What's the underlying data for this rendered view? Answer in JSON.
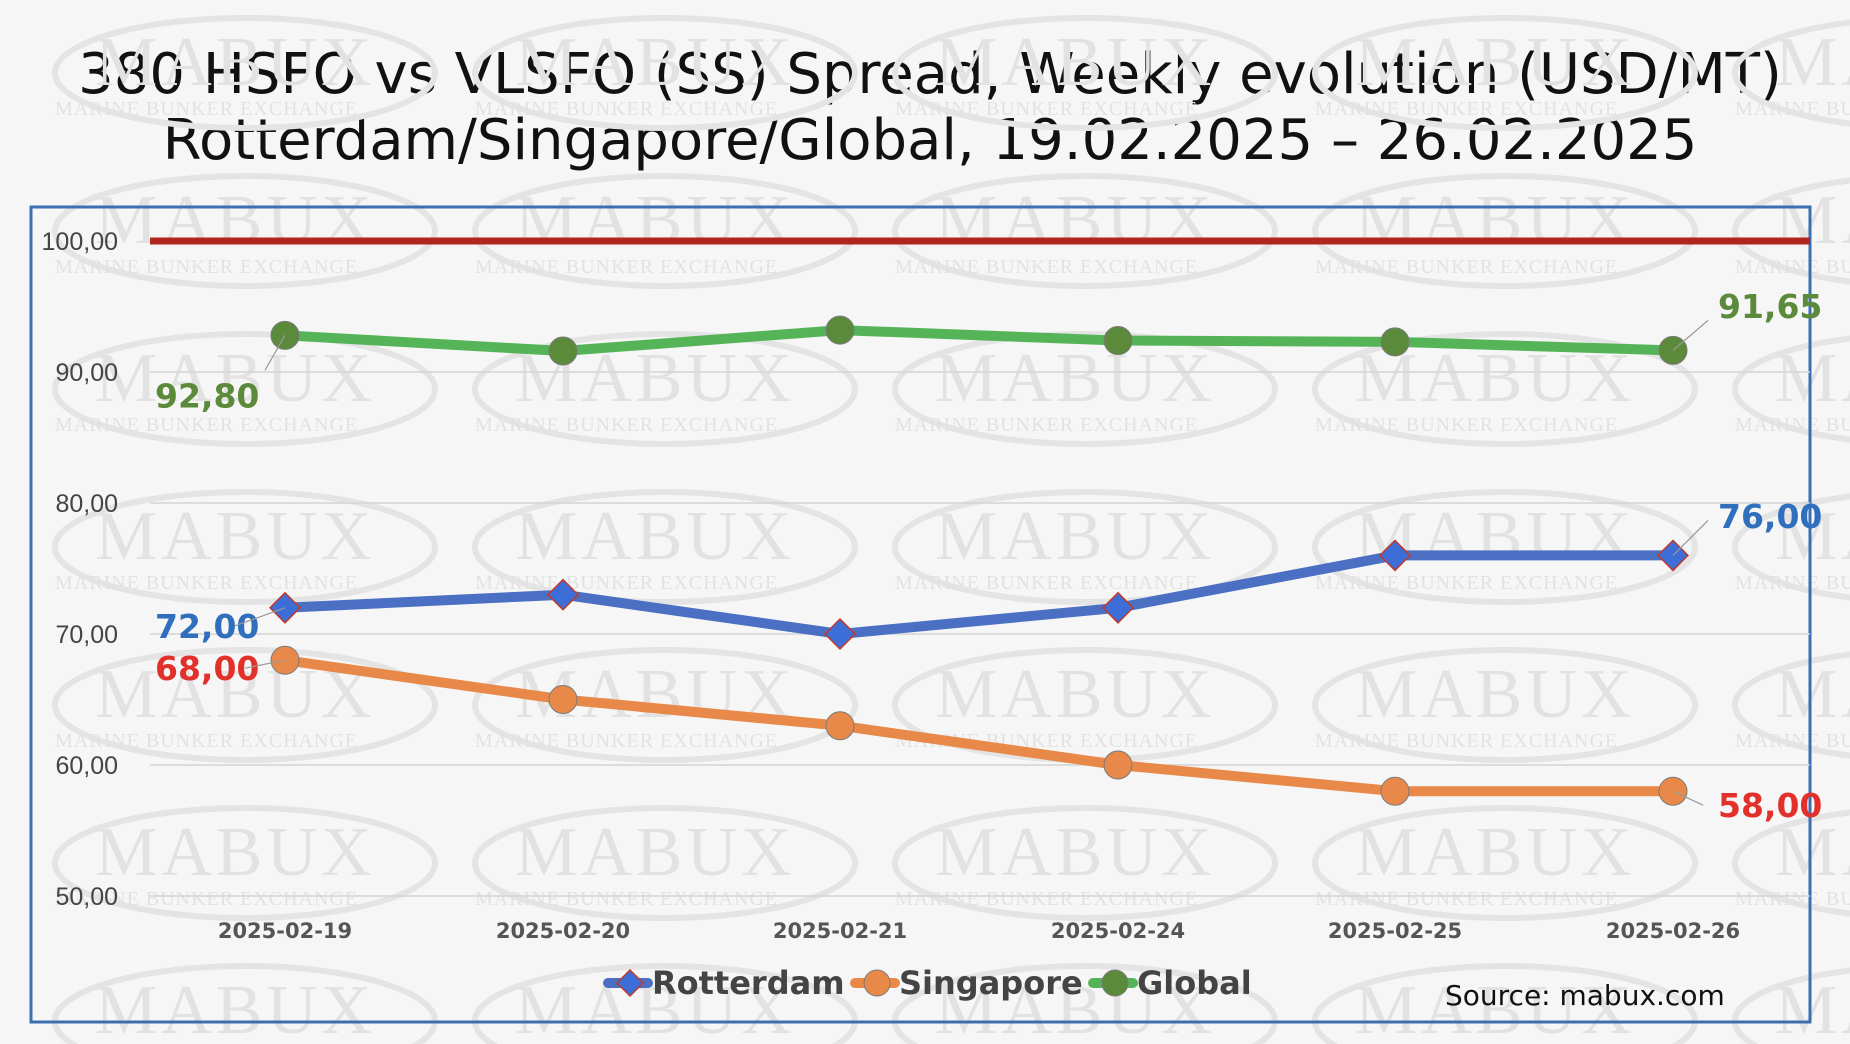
{
  "chart_data": {
    "type": "line",
    "title": "380 HSFO vs VLSFO (SS) Spread, Weekly evolution (USD/MT)",
    "subtitle": "Rotterdam/Singapore/Global, 19.02.2025 – 26.02.2025",
    "categories": [
      "2025-02-19",
      "2025-02-20",
      "2025-02-21",
      "2025-02-24",
      "2025-02-25",
      "2025-02-26"
    ],
    "y_ticks": [
      "50,00",
      "60,00",
      "70,00",
      "80,00",
      "90,00",
      "100,00"
    ],
    "ylim": [
      50,
      100
    ],
    "reference_line": {
      "value": 100,
      "color": "#b0251c"
    },
    "series": [
      {
        "name": "Rotterdam",
        "color": "#4a6fc3",
        "marker": "diamond",
        "marker_color": "#3d6ed8",
        "values": [
          72,
          73,
          70,
          72,
          76,
          76
        ],
        "start_label": "72,00",
        "end_label": "76,00",
        "label_color": "#2f6fbd"
      },
      {
        "name": "Singapore",
        "color": "#e8894a",
        "marker": "circle",
        "marker_color": "#e8894a",
        "values": [
          68,
          65,
          63,
          60,
          58,
          58
        ],
        "start_label": "68,00",
        "end_label": "58,00",
        "label_color": "#e2302a"
      },
      {
        "name": "Global",
        "color": "#55b458",
        "marker": "circle",
        "marker_color": "#5a8a3a",
        "values": [
          92.8,
          91.6,
          93.2,
          92.4,
          92.3,
          91.65
        ],
        "start_label": "92,80",
        "end_label": "91,65",
        "label_color": "#5a8a3a"
      }
    ],
    "legend_position": "bottom-center",
    "grid": true
  },
  "watermark": {
    "main": "MABUX",
    "sub": "MARINE BUNKER EXCHANGE"
  },
  "source": "Source: mabux.com"
}
